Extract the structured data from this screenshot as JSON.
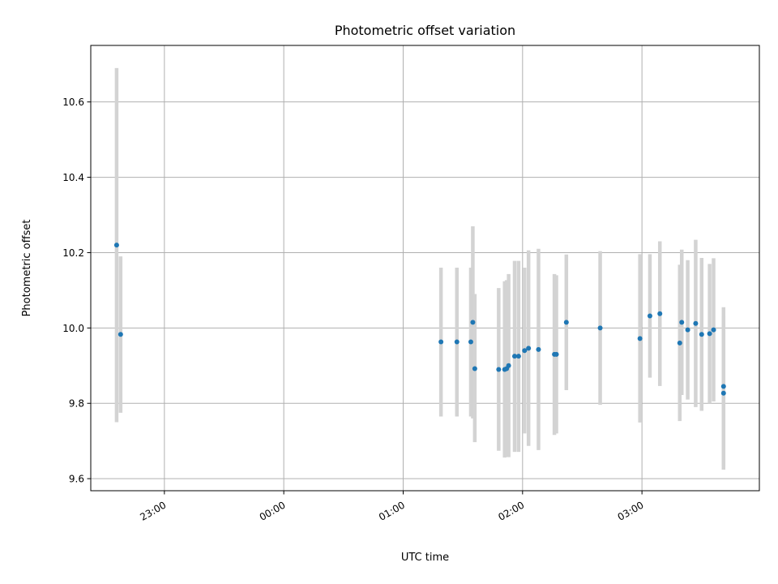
{
  "chart_data": {
    "type": "scatter",
    "title": "Photometric offset variation",
    "xlabel": "UTC time",
    "ylabel": "Photometric offset",
    "x_unit": "UTC time (HH:MM)",
    "xlim": [
      "22:23",
      "03:59"
    ],
    "ylim": [
      9.568,
      10.75
    ],
    "x_ticks": [
      "23:00",
      "00:00",
      "01:00",
      "02:00",
      "03:00"
    ],
    "y_ticks": [
      9.6,
      9.8,
      10.0,
      10.2,
      10.4,
      10.6
    ],
    "y_tick_labels": [
      "9.6",
      "9.8",
      "10.0",
      "10.2",
      "10.4",
      "10.6"
    ],
    "grid": true,
    "legend": false,
    "colors": {
      "marker": "#1f77b4",
      "errorbar": "#d3d3d3",
      "grid": "#b0b0b0"
    },
    "series": [
      {
        "points": [
          {
            "x": "22:36",
            "y": 10.22,
            "lo": 9.75,
            "hi": 10.69
          },
          {
            "x": "22:38",
            "y": 9.983,
            "lo": 9.775,
            "hi": 10.19
          },
          {
            "x": "01:19",
            "y": 9.963,
            "lo": 9.765,
            "hi": 10.16
          },
          {
            "x": "01:27",
            "y": 9.963,
            "lo": 9.765,
            "hi": 10.16
          },
          {
            "x": "01:34",
            "y": 9.963,
            "lo": 9.765,
            "hi": 10.16
          },
          {
            "x": "01:35",
            "y": 10.015,
            "lo": 9.76,
            "hi": 10.27
          },
          {
            "x": "01:36",
            "y": 9.892,
            "lo": 9.697,
            "hi": 10.09
          },
          {
            "x": "01:48",
            "y": 9.89,
            "lo": 9.674,
            "hi": 10.106
          },
          {
            "x": "01:51",
            "y": 9.89,
            "lo": 9.656,
            "hi": 10.124
          },
          {
            "x": "01:52",
            "y": 9.892,
            "lo": 9.658,
            "hi": 10.127
          },
          {
            "x": "01:53",
            "y": 9.9,
            "lo": 9.657,
            "hi": 10.143
          },
          {
            "x": "01:56",
            "y": 9.925,
            "lo": 9.671,
            "hi": 10.178
          },
          {
            "x": "01:58",
            "y": 9.925,
            "lo": 9.671,
            "hi": 10.178
          },
          {
            "x": "02:01",
            "y": 9.94,
            "lo": 9.72,
            "hi": 10.16
          },
          {
            "x": "02:03",
            "y": 9.946,
            "lo": 9.687,
            "hi": 10.206
          },
          {
            "x": "02:08",
            "y": 9.943,
            "lo": 9.676,
            "hi": 10.21
          },
          {
            "x": "02:16",
            "y": 9.93,
            "lo": 9.716,
            "hi": 10.143
          },
          {
            "x": "02:17",
            "y": 9.93,
            "lo": 9.72,
            "hi": 10.14
          },
          {
            "x": "02:22",
            "y": 10.015,
            "lo": 9.835,
            "hi": 10.195
          },
          {
            "x": "02:39",
            "y": 10.0,
            "lo": 9.796,
            "hi": 10.204
          },
          {
            "x": "02:59",
            "y": 9.972,
            "lo": 9.749,
            "hi": 10.196
          },
          {
            "x": "03:04",
            "y": 10.032,
            "lo": 9.868,
            "hi": 10.196
          },
          {
            "x": "03:09",
            "y": 10.038,
            "lo": 9.846,
            "hi": 10.23
          },
          {
            "x": "03:19",
            "y": 9.96,
            "lo": 9.753,
            "hi": 10.168
          },
          {
            "x": "03:20",
            "y": 10.015,
            "lo": 9.822,
            "hi": 10.208
          },
          {
            "x": "03:23",
            "y": 9.995,
            "lo": 9.81,
            "hi": 10.18
          },
          {
            "x": "03:27",
            "y": 10.012,
            "lo": 9.79,
            "hi": 10.234
          },
          {
            "x": "03:30",
            "y": 9.983,
            "lo": 9.78,
            "hi": 10.186
          },
          {
            "x": "03:34",
            "y": 9.985,
            "lo": 9.8,
            "hi": 10.17
          },
          {
            "x": "03:36",
            "y": 9.995,
            "lo": 9.805,
            "hi": 10.185
          },
          {
            "x": "03:41",
            "y": 9.845,
            "lo": 9.635,
            "hi": 10.055
          },
          {
            "x": "03:41",
            "y": 9.827,
            "lo": 9.624,
            "hi": 10.03
          }
        ]
      }
    ]
  }
}
